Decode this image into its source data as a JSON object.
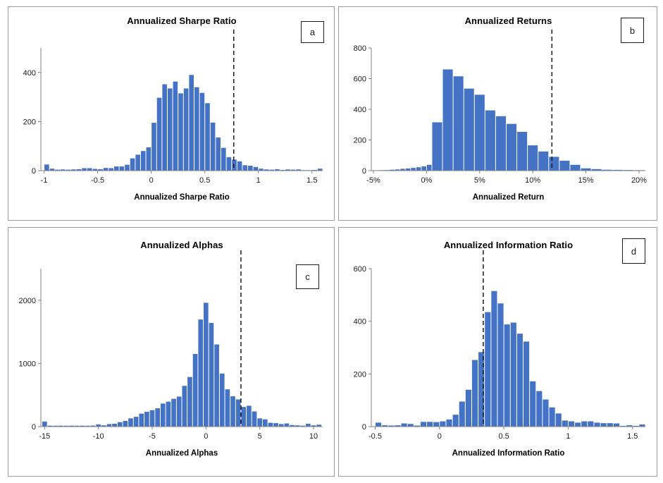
{
  "figure": {
    "background": "#ffffff"
  },
  "colors": {
    "bar_fill": "#4472C4",
    "axis_line": "#808080",
    "tick_label": "#1a1a1a",
    "threshold_line": "#1a1a1a",
    "panel_border": "#9a9a9a",
    "title_text": "#000000"
  },
  "chart_data": [
    {
      "type": "bar",
      "subtype": "histogram",
      "panel_letter": "a",
      "title": "Annualized Sharpe Ratio",
      "xlabel": "Annualized Sharpe Ratio",
      "xlim": [
        -1.03,
        1.6
      ],
      "ylim": [
        0,
        500
      ],
      "grid": false,
      "legend": null,
      "yticks": [
        {
          "v": 0,
          "label": "0"
        },
        {
          "v": 200,
          "label": "200"
        },
        {
          "v": 400,
          "label": "400"
        }
      ],
      "xticks": [
        {
          "v": -1,
          "label": "-1"
        },
        {
          "v": -0.5,
          "label": "-0.5"
        },
        {
          "v": 0,
          "label": "0"
        },
        {
          "v": 0.5,
          "label": "0.5"
        },
        {
          "v": 1,
          "label": "1"
        },
        {
          "v": 1.5,
          "label": "1.5"
        }
      ],
      "dashed_line_x": 0.77,
      "bar_format": "[bin_left, bin_width, count]",
      "bars": [
        [
          -1.0,
          0.05,
          25
        ],
        [
          -0.95,
          0.05,
          8
        ],
        [
          -0.9,
          0.05,
          4
        ],
        [
          -0.85,
          0.05,
          5
        ],
        [
          -0.8,
          0.05,
          4
        ],
        [
          -0.75,
          0.05,
          5
        ],
        [
          -0.7,
          0.05,
          6
        ],
        [
          -0.65,
          0.05,
          10
        ],
        [
          -0.6,
          0.05,
          10
        ],
        [
          -0.55,
          0.05,
          7
        ],
        [
          -0.5,
          0.05,
          6
        ],
        [
          -0.45,
          0.05,
          11
        ],
        [
          -0.4,
          0.05,
          10
        ],
        [
          -0.35,
          0.05,
          17
        ],
        [
          -0.3,
          0.05,
          17
        ],
        [
          -0.25,
          0.05,
          24
        ],
        [
          -0.2,
          0.05,
          50
        ],
        [
          -0.15,
          0.05,
          65
        ],
        [
          -0.1,
          0.05,
          80
        ],
        [
          -0.05,
          0.05,
          95
        ],
        [
          0.0,
          0.05,
          195
        ],
        [
          0.05,
          0.05,
          297
        ],
        [
          0.1,
          0.05,
          352
        ],
        [
          0.15,
          0.05,
          335
        ],
        [
          0.2,
          0.05,
          363
        ],
        [
          0.25,
          0.05,
          315
        ],
        [
          0.3,
          0.05,
          335
        ],
        [
          0.35,
          0.05,
          390
        ],
        [
          0.4,
          0.05,
          340
        ],
        [
          0.45,
          0.05,
          317
        ],
        [
          0.5,
          0.05,
          275
        ],
        [
          0.55,
          0.05,
          196
        ],
        [
          0.6,
          0.05,
          135
        ],
        [
          0.65,
          0.05,
          93
        ],
        [
          0.7,
          0.05,
          55
        ],
        [
          0.75,
          0.05,
          45
        ],
        [
          0.8,
          0.05,
          38
        ],
        [
          0.85,
          0.05,
          22
        ],
        [
          0.9,
          0.05,
          20
        ],
        [
          0.95,
          0.05,
          15
        ],
        [
          1.0,
          0.05,
          8
        ],
        [
          1.05,
          0.05,
          5
        ],
        [
          1.1,
          0.05,
          4
        ],
        [
          1.15,
          0.05,
          6
        ],
        [
          1.2,
          0.05,
          3
        ],
        [
          1.25,
          0.05,
          5
        ],
        [
          1.3,
          0.05,
          4
        ],
        [
          1.35,
          0.05,
          5
        ],
        [
          1.4,
          0.05,
          2
        ],
        [
          1.45,
          0.05,
          2
        ],
        [
          1.5,
          0.05,
          3
        ],
        [
          1.55,
          0.05,
          8
        ]
      ]
    },
    {
      "type": "bar",
      "subtype": "histogram",
      "panel_letter": "b",
      "title": "Annualized Returns",
      "xlabel": "Annualized Return",
      "xlim": [
        -5.2,
        20.6
      ],
      "ylim": [
        0,
        800
      ],
      "grid": false,
      "legend": null,
      "yticks": [
        {
          "v": 0,
          "label": "0"
        },
        {
          "v": 200,
          "label": "200"
        },
        {
          "v": 400,
          "label": "400"
        },
        {
          "v": 600,
          "label": "600"
        },
        {
          "v": 800,
          "label": "800"
        }
      ],
      "xticks": [
        {
          "v": -5,
          "label": "-5%"
        },
        {
          "v": 0,
          "label": "0%"
        },
        {
          "v": 5,
          "label": "5%"
        },
        {
          "v": 10,
          "label": "10%"
        },
        {
          "v": 15,
          "label": "15%"
        },
        {
          "v": 20,
          "label": "20%"
        }
      ],
      "dashed_line_x": 11.8,
      "bar_format": "[bin_left, bin_width, count]",
      "bars": [
        [
          -4.5,
          0.5,
          3
        ],
        [
          -4.0,
          0.5,
          4
        ],
        [
          -3.5,
          0.5,
          6
        ],
        [
          -3.0,
          0.5,
          8
        ],
        [
          -2.5,
          0.5,
          12
        ],
        [
          -2.0,
          0.5,
          14
        ],
        [
          -1.5,
          0.5,
          18
        ],
        [
          -1.0,
          0.5,
          22
        ],
        [
          -0.5,
          0.5,
          28
        ],
        [
          0.0,
          0.5,
          38
        ],
        [
          0.5,
          1,
          315
        ],
        [
          1.5,
          1,
          660
        ],
        [
          2.5,
          1,
          615
        ],
        [
          3.5,
          1,
          535
        ],
        [
          4.5,
          1,
          495
        ],
        [
          5.5,
          1,
          393
        ],
        [
          6.5,
          1,
          355
        ],
        [
          7.5,
          1,
          305
        ],
        [
          8.5,
          1,
          253
        ],
        [
          9.5,
          1,
          165
        ],
        [
          10.5,
          1,
          125
        ],
        [
          11.5,
          1,
          90
        ],
        [
          12.5,
          1,
          65
        ],
        [
          13.5,
          1,
          38
        ],
        [
          14.5,
          1,
          15
        ],
        [
          15.5,
          1,
          10
        ],
        [
          16.5,
          1,
          6
        ],
        [
          17.5,
          1,
          5
        ],
        [
          18.5,
          1,
          4
        ],
        [
          19.5,
          1,
          3
        ]
      ]
    },
    {
      "type": "bar",
      "subtype": "histogram",
      "panel_letter": "c",
      "title": "Annualized Alphas",
      "xlabel": "Annualized Alphas",
      "xlim": [
        -15.35,
        10.85
      ],
      "ylim": [
        0,
        2500
      ],
      "grid": false,
      "legend": null,
      "yticks": [
        {
          "v": 0,
          "label": "0"
        },
        {
          "v": 1000,
          "label": "1000"
        },
        {
          "v": 2000,
          "label": "2000"
        }
      ],
      "xticks": [
        {
          "v": -15,
          "label": "-15"
        },
        {
          "v": -10,
          "label": "-10"
        },
        {
          "v": -5,
          "label": "-5"
        },
        {
          "v": 0,
          "label": "0"
        },
        {
          "v": 5,
          "label": "5"
        },
        {
          "v": 10,
          "label": "10"
        }
      ],
      "dashed_line_x": 3.25,
      "bar_format": "[bin_left, bin_width, count]",
      "bars": [
        [
          -15.25,
          0.5,
          80
        ],
        [
          -14.75,
          0.5,
          15
        ],
        [
          -14.25,
          0.5,
          14
        ],
        [
          -13.75,
          0.5,
          15
        ],
        [
          -13.25,
          0.5,
          14
        ],
        [
          -12.75,
          0.5,
          15
        ],
        [
          -12.25,
          0.5,
          14
        ],
        [
          -11.75,
          0.5,
          15
        ],
        [
          -11.25,
          0.5,
          14
        ],
        [
          -10.75,
          0.5,
          16
        ],
        [
          -10.25,
          0.5,
          35
        ],
        [
          -9.75,
          0.5,
          20
        ],
        [
          -9.25,
          0.5,
          40
        ],
        [
          -8.75,
          0.5,
          45
        ],
        [
          -8.25,
          0.5,
          70
        ],
        [
          -7.75,
          0.5,
          90
        ],
        [
          -7.25,
          0.5,
          130
        ],
        [
          -6.75,
          0.5,
          155
        ],
        [
          -6.25,
          0.5,
          205
        ],
        [
          -5.75,
          0.5,
          235
        ],
        [
          -5.25,
          0.5,
          260
        ],
        [
          -4.75,
          0.5,
          290
        ],
        [
          -4.25,
          0.5,
          365
        ],
        [
          -3.75,
          0.5,
          395
        ],
        [
          -3.25,
          0.5,
          440
        ],
        [
          -2.75,
          0.5,
          475
        ],
        [
          -2.25,
          0.5,
          645
        ],
        [
          -1.75,
          0.5,
          785
        ],
        [
          -1.25,
          0.5,
          1150
        ],
        [
          -0.75,
          0.5,
          1695
        ],
        [
          -0.25,
          0.5,
          1960
        ],
        [
          0.25,
          0.5,
          1640
        ],
        [
          0.75,
          0.5,
          1300
        ],
        [
          1.25,
          0.5,
          840
        ],
        [
          1.75,
          0.5,
          590
        ],
        [
          2.25,
          0.5,
          480
        ],
        [
          2.75,
          0.5,
          430
        ],
        [
          3.25,
          0.5,
          310
        ],
        [
          3.75,
          0.5,
          330
        ],
        [
          4.25,
          0.5,
          240
        ],
        [
          4.75,
          0.5,
          130
        ],
        [
          5.25,
          0.5,
          115
        ],
        [
          5.75,
          0.5,
          60
        ],
        [
          6.25,
          0.5,
          55
        ],
        [
          6.75,
          0.5,
          40
        ],
        [
          7.25,
          0.5,
          50
        ],
        [
          7.75,
          0.5,
          25
        ],
        [
          8.25,
          0.5,
          20
        ],
        [
          8.75,
          0.5,
          15
        ],
        [
          9.25,
          0.5,
          45
        ],
        [
          9.75,
          0.5,
          20
        ],
        [
          10.25,
          0.5,
          30
        ]
      ]
    },
    {
      "type": "bar",
      "subtype": "histogram",
      "panel_letter": "d",
      "title": "Annualized Information Ratio",
      "xlabel": "Annualized Information Ratio",
      "xlim": [
        -0.53,
        1.6
      ],
      "ylim": [
        0,
        600
      ],
      "grid": false,
      "legend": null,
      "yticks": [
        {
          "v": 0,
          "label": "0"
        },
        {
          "v": 200,
          "label": "200"
        },
        {
          "v": 400,
          "label": "400"
        },
        {
          "v": 600,
          "label": "600"
        }
      ],
      "xticks": [
        {
          "v": -0.5,
          "label": "-0.5"
        },
        {
          "v": 0,
          "label": "0"
        },
        {
          "v": 0.5,
          "label": "0.5"
        },
        {
          "v": 1,
          "label": "1"
        },
        {
          "v": 1.5,
          "label": "1.5"
        }
      ],
      "dashed_line_x": 0.34,
      "bar_format": "[bin_left, bin_width, count]",
      "bars": [
        [
          -0.5,
          0.05,
          15
        ],
        [
          -0.45,
          0.05,
          5
        ],
        [
          -0.4,
          0.05,
          4
        ],
        [
          -0.35,
          0.05,
          5
        ],
        [
          -0.3,
          0.05,
          12
        ],
        [
          -0.25,
          0.05,
          10
        ],
        [
          -0.2,
          0.05,
          4
        ],
        [
          -0.15,
          0.05,
          18
        ],
        [
          -0.1,
          0.05,
          18
        ],
        [
          -0.05,
          0.05,
          17
        ],
        [
          0.0,
          0.05,
          20
        ],
        [
          0.05,
          0.05,
          27
        ],
        [
          0.1,
          0.05,
          45
        ],
        [
          0.15,
          0.05,
          95
        ],
        [
          0.2,
          0.05,
          140
        ],
        [
          0.25,
          0.05,
          253
        ],
        [
          0.3,
          0.05,
          283
        ],
        [
          0.35,
          0.05,
          435
        ],
        [
          0.4,
          0.05,
          515
        ],
        [
          0.45,
          0.05,
          468
        ],
        [
          0.5,
          0.05,
          388
        ],
        [
          0.55,
          0.05,
          395
        ],
        [
          0.6,
          0.05,
          353
        ],
        [
          0.65,
          0.05,
          323
        ],
        [
          0.7,
          0.05,
          172
        ],
        [
          0.75,
          0.05,
          135
        ],
        [
          0.8,
          0.05,
          103
        ],
        [
          0.85,
          0.05,
          73
        ],
        [
          0.9,
          0.05,
          50
        ],
        [
          0.95,
          0.05,
          23
        ],
        [
          1.0,
          0.05,
          20
        ],
        [
          1.05,
          0.05,
          15
        ],
        [
          1.1,
          0.05,
          20
        ],
        [
          1.15,
          0.05,
          20
        ],
        [
          1.2,
          0.05,
          15
        ],
        [
          1.25,
          0.05,
          13
        ],
        [
          1.3,
          0.05,
          13
        ],
        [
          1.35,
          0.05,
          12
        ],
        [
          1.4,
          0.05,
          3
        ],
        [
          1.45,
          0.05,
          5
        ],
        [
          1.5,
          0.05,
          3
        ],
        [
          1.55,
          0.05,
          8
        ]
      ]
    }
  ]
}
